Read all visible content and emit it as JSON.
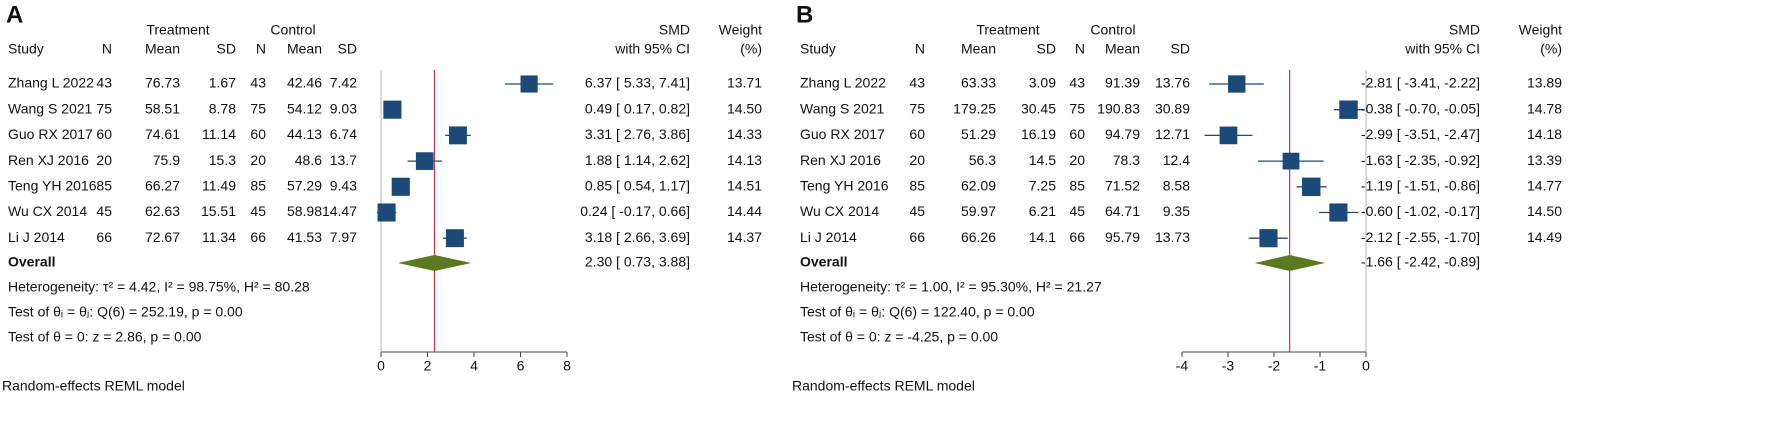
{
  "chart_data": [
    {
      "type": "forest",
      "panel": "A",
      "group_headers": [
        "Treatment",
        "Control"
      ],
      "columns": [
        "Study",
        "N",
        "Mean",
        "SD",
        "N",
        "Mean",
        "SD"
      ],
      "effect_header": [
        "SMD",
        "with 95% CI"
      ],
      "weight_header": [
        "Weight",
        "(%)"
      ],
      "studies": [
        {
          "name": "Zhang L 2022",
          "treatment": [
            43,
            76.73,
            1.67
          ],
          "control": [
            43,
            42.46,
            7.42
          ],
          "smd": 6.37,
          "lo": 5.33,
          "hi": 7.41,
          "ci_label": "6.37 [ 5.33, 7.41]",
          "weight": 13.71,
          "weight_label": "13.71"
        },
        {
          "name": "Wang S 2021",
          "treatment": [
            75,
            58.51,
            8.78
          ],
          "control": [
            75,
            54.12,
            9.03
          ],
          "smd": 0.49,
          "lo": 0.17,
          "hi": 0.82,
          "ci_label": "0.49 [ 0.17, 0.82]",
          "weight": 14.5,
          "weight_label": "14.50"
        },
        {
          "name": "Guo RX 2017",
          "treatment": [
            60,
            74.61,
            11.14
          ],
          "control": [
            60,
            44.13,
            6.74
          ],
          "smd": 3.31,
          "lo": 2.76,
          "hi": 3.86,
          "ci_label": "3.31 [ 2.76, 3.86]",
          "weight": 14.33,
          "weight_label": "14.33"
        },
        {
          "name": "Ren XJ 2016",
          "treatment": [
            20,
            75.9,
            15.3
          ],
          "control": [
            20,
            48.6,
            13.7
          ],
          "smd": 1.88,
          "lo": 1.14,
          "hi": 2.62,
          "ci_label": "1.88 [ 1.14, 2.62]",
          "weight": 14.13,
          "weight_label": "14.13"
        },
        {
          "name": "Teng YH 2016",
          "treatment": [
            85,
            66.27,
            11.49
          ],
          "control": [
            85,
            57.29,
            9.43
          ],
          "smd": 0.85,
          "lo": 0.54,
          "hi": 1.17,
          "ci_label": "0.85 [ 0.54, 1.17]",
          "weight": 14.51,
          "weight_label": "14.51"
        },
        {
          "name": "Wu CX 2014",
          "treatment": [
            45,
            62.63,
            15.51
          ],
          "control": [
            45,
            58.98,
            14.47
          ],
          "smd": 0.24,
          "lo": -0.17,
          "hi": 0.66,
          "ci_label": "0.24 [ -0.17, 0.66]",
          "weight": 14.44,
          "weight_label": "14.44"
        },
        {
          "name": "Li J 2014",
          "treatment": [
            66,
            72.67,
            11.34
          ],
          "control": [
            66,
            41.53,
            7.97
          ],
          "smd": 3.18,
          "lo": 2.66,
          "hi": 3.69,
          "ci_label": "3.18 [ 2.66, 3.69]",
          "weight": 14.37,
          "weight_label": "14.37"
        }
      ],
      "overall": {
        "label": "Overall",
        "smd": 2.3,
        "lo": 0.73,
        "hi": 3.88,
        "ci_label": "2.30 [ 0.73, 3.88]"
      },
      "notes": [
        "Heterogeneity: τ² = 4.42, I² = 98.75%, H² = 80.28",
        "Test of θᵢ = θⱼ: Q(6) = 252.19, p = 0.00",
        "Test of θ = 0: z = 2.86, p = 0.00"
      ],
      "model": "Random-effects REML model",
      "xlim": [
        0,
        8
      ],
      "xticks": [
        0,
        2,
        4,
        6,
        8
      ],
      "color": "#1c4a78",
      "overall_color": "#5b7a1f",
      "overall_line_color": "#c8364e"
    },
    {
      "type": "forest",
      "panel": "B",
      "group_headers": [
        "Treatment",
        "Control"
      ],
      "columns": [
        "Study",
        "N",
        "Mean",
        "SD",
        "N",
        "Mean",
        "SD"
      ],
      "effect_header": [
        "SMD",
        "with 95% CI"
      ],
      "weight_header": [
        "Weight",
        "(%)"
      ],
      "studies": [
        {
          "name": "Zhang L 2022",
          "treatment": [
            43,
            63.33,
            3.09
          ],
          "control": [
            43,
            91.39,
            13.76
          ],
          "smd": -2.81,
          "lo": -3.41,
          "hi": -2.22,
          "ci_label": "-2.81 [ -3.41, -2.22]",
          "weight": 13.89,
          "weight_label": "13.89"
        },
        {
          "name": "Wang S 2021",
          "treatment": [
            75,
            179.25,
            30.45
          ],
          "control": [
            75,
            190.83,
            30.89
          ],
          "smd": -0.38,
          "lo": -0.7,
          "hi": -0.05,
          "ci_label": "-0.38 [ -0.70, -0.05]",
          "weight": 14.78,
          "weight_label": "14.78"
        },
        {
          "name": "Guo RX 2017",
          "treatment": [
            60,
            51.29,
            16.19
          ],
          "control": [
            60,
            94.79,
            12.71
          ],
          "smd": -2.99,
          "lo": -3.51,
          "hi": -2.47,
          "ci_label": "-2.99 [ -3.51, -2.47]",
          "weight": 14.18,
          "weight_label": "14.18"
        },
        {
          "name": "Ren XJ 2016",
          "treatment": [
            20,
            56.3,
            14.5
          ],
          "control": [
            20,
            78.3,
            12.4
          ],
          "smd": -1.63,
          "lo": -2.35,
          "hi": -0.92,
          "ci_label": "-1.63 [ -2.35, -0.92]",
          "weight": 13.39,
          "weight_label": "13.39"
        },
        {
          "name": "Teng YH 2016",
          "treatment": [
            85,
            62.09,
            7.25
          ],
          "control": [
            85,
            71.52,
            8.58
          ],
          "smd": -1.19,
          "lo": -1.51,
          "hi": -0.86,
          "ci_label": "-1.19 [ -1.51, -0.86]",
          "weight": 14.77,
          "weight_label": "14.77"
        },
        {
          "name": "Wu CX 2014",
          "treatment": [
            45,
            59.97,
            6.21
          ],
          "control": [
            45,
            64.71,
            9.35
          ],
          "smd": -0.6,
          "lo": -1.02,
          "hi": -0.17,
          "ci_label": "-0.60 [ -1.02, -0.17]",
          "weight": 14.5,
          "weight_label": "14.50"
        },
        {
          "name": "Li J 2014",
          "treatment": [
            66,
            66.26,
            14.1
          ],
          "control": [
            66,
            95.79,
            13.73
          ],
          "smd": -2.12,
          "lo": -2.55,
          "hi": -1.7,
          "ci_label": "-2.12 [ -2.55, -1.70]",
          "weight": 14.49,
          "weight_label": "14.49"
        }
      ],
      "overall": {
        "label": "Overall",
        "smd": -1.66,
        "lo": -2.42,
        "hi": -0.89,
        "ci_label": "-1.66 [ -2.42, -0.89]"
      },
      "notes": [
        "Heterogeneity: τ² = 1.00, I² = 95.30%, H² = 21.27",
        "Test of θᵢ = θⱼ: Q(6) = 122.40, p = 0.00",
        "Test of θ = 0: z = -4.25, p = 0.00"
      ],
      "model": "Random-effects REML model",
      "xlim": [
        -4,
        0
      ],
      "xticks": [
        -4,
        -3,
        -2,
        -1,
        0
      ],
      "color": "#1c4a78",
      "overall_color": "#5b7a1f",
      "overall_line_color": "#c8364e"
    }
  ]
}
